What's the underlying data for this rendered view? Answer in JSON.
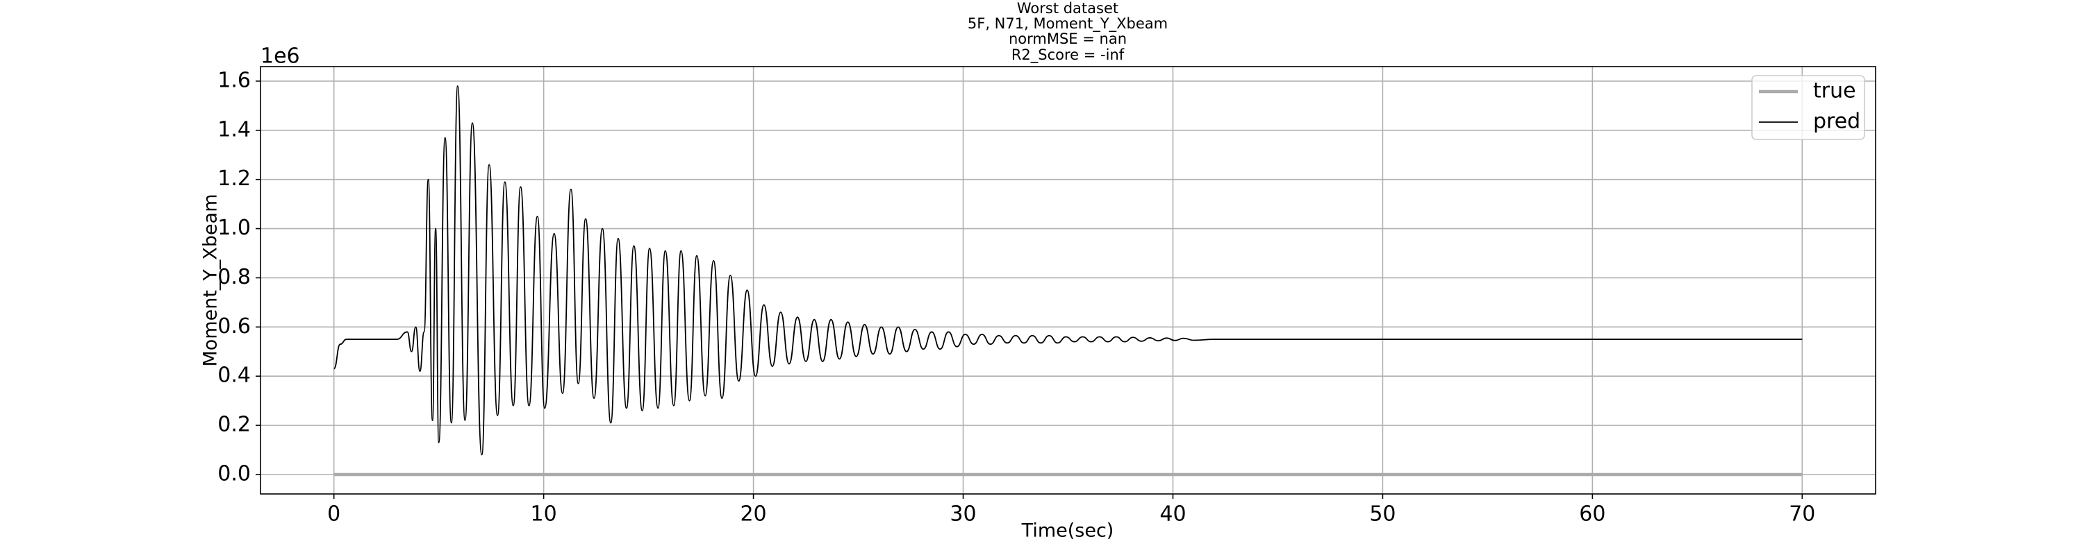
{
  "chart_data": {
    "type": "line",
    "title": [
      "Worst dataset",
      "5F, N71, Moment_Y_Xbeam",
      "normMSE = nan",
      "R2_Score = -inf"
    ],
    "x_label": "Time(sec)",
    "y_label": "Moment_Y_Xbeam",
    "y_offset_label": "1e6",
    "xlim": [
      -3.5,
      73.5
    ],
    "ylim": [
      -0.079,
      1.659
    ],
    "xticks": [
      0,
      10,
      20,
      30,
      40,
      50,
      60,
      70
    ],
    "yticks": [
      {
        "value": 0,
        "label": "0.0"
      },
      0.2,
      0.4,
      0.6,
      0.8,
      {
        "value": 1,
        "label": "1.0"
      },
      1.2,
      1.4,
      1.6
    ],
    "grid": true,
    "legend": "upper right",
    "x": [
      0,
      0.3,
      0.6,
      0.9,
      1.5,
      2.0,
      2.5,
      3.0,
      3.5,
      3.7,
      3.9,
      4.1,
      4.3,
      4.5,
      4.7,
      4.85,
      5.0,
      5.3,
      5.6,
      5.9,
      6.25,
      6.6,
      7.05,
      7.4,
      7.8,
      8.15,
      8.55,
      8.9,
      9.3,
      9.7,
      10.05,
      10.5,
      10.9,
      11.3,
      11.65,
      12.0,
      12.4,
      12.8,
      13.2,
      13.55,
      13.95,
      14.3,
      14.7,
      15.05,
      15.45,
      15.8,
      16.2,
      16.55,
      16.95,
      17.3,
      17.7,
      18.1,
      18.5,
      18.9,
      19.3,
      19.7,
      20.1,
      20.5,
      20.9,
      21.3,
      21.7,
      22.1,
      22.5,
      22.9,
      23.3,
      23.7,
      24.1,
      24.5,
      24.9,
      25.3,
      25.7,
      26.1,
      26.5,
      26.9,
      27.3,
      27.7,
      28.1,
      28.5,
      28.9,
      29.3,
      29.7,
      30.1,
      30.5,
      30.9,
      31.3,
      31.7,
      32.1,
      32.5,
      32.9,
      33.3,
      33.7,
      34.1,
      34.5,
      34.9,
      35.3,
      35.7,
      36.1,
      36.5,
      36.9,
      37.3,
      37.7,
      38.1,
      38.5,
      38.9,
      39.3,
      39.7,
      40.1,
      40.5,
      41,
      42,
      70
    ],
    "series": [
      {
        "name": "true",
        "color": "#aaaaaa",
        "values": [
          0,
          0,
          0,
          0,
          0,
          0,
          0,
          0,
          0,
          0,
          0,
          0,
          0,
          0,
          0,
          0,
          0,
          0,
          0,
          0,
          0,
          0,
          0,
          0,
          0,
          0,
          0,
          0,
          0,
          0,
          0,
          0,
          0,
          0,
          0,
          0,
          0,
          0,
          0,
          0,
          0,
          0,
          0,
          0,
          0,
          0,
          0,
          0,
          0,
          0,
          0,
          0,
          0,
          0,
          0,
          0,
          0,
          0,
          0,
          0,
          0,
          0,
          0,
          0,
          0,
          0,
          0,
          0,
          0,
          0,
          0,
          0,
          0,
          0,
          0,
          0,
          0,
          0,
          0,
          0,
          0,
          0,
          0,
          0,
          0,
          0,
          0,
          0,
          0,
          0,
          0,
          0,
          0,
          0,
          0,
          0,
          0,
          0,
          0,
          0,
          0,
          0,
          0,
          0,
          0,
          0,
          0,
          0,
          0,
          0,
          0
        ]
      },
      {
        "name": "pred",
        "color": "#000000",
        "values": [
          0.43,
          0.53,
          0.55,
          0.55,
          0.55,
          0.55,
          0.55,
          0.55,
          0.58,
          0.5,
          0.6,
          0.42,
          0.58,
          1.2,
          0.22,
          1.0,
          0.13,
          1.37,
          0.21,
          1.58,
          0.22,
          1.43,
          0.08,
          1.26,
          0.24,
          1.19,
          0.28,
          1.17,
          0.28,
          1.05,
          0.27,
          0.98,
          0.33,
          1.16,
          0.37,
          1.04,
          0.31,
          1.0,
          0.21,
          0.96,
          0.27,
          0.93,
          0.26,
          0.92,
          0.27,
          0.91,
          0.28,
          0.91,
          0.3,
          0.89,
          0.32,
          0.87,
          0.31,
          0.81,
          0.38,
          0.75,
          0.4,
          0.69,
          0.44,
          0.66,
          0.45,
          0.64,
          0.46,
          0.63,
          0.46,
          0.63,
          0.47,
          0.62,
          0.48,
          0.61,
          0.49,
          0.6,
          0.49,
          0.6,
          0.5,
          0.59,
          0.51,
          0.58,
          0.51,
          0.58,
          0.52,
          0.57,
          0.53,
          0.57,
          0.53,
          0.565,
          0.535,
          0.565,
          0.535,
          0.565,
          0.535,
          0.565,
          0.535,
          0.56,
          0.54,
          0.56,
          0.54,
          0.56,
          0.54,
          0.56,
          0.54,
          0.558,
          0.542,
          0.556,
          0.544,
          0.555,
          0.545,
          0.554,
          0.546,
          0.55,
          0.55
        ]
      }
    ]
  }
}
